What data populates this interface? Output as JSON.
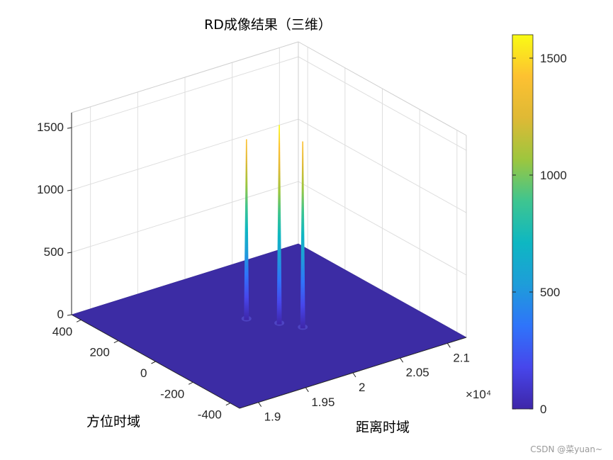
{
  "chart_data": {
    "type": "surface",
    "title": "RD成像结果（三维）",
    "xlabel": "距离时域",
    "ylabel": "方位时域",
    "zlabel": "",
    "x_ticks": [
      "1.9",
      "1.95",
      "2",
      "2.05",
      "2.1"
    ],
    "x_exponent": "×10⁴",
    "y_ticks": [
      "400",
      "200",
      "0",
      "-200",
      "-400"
    ],
    "z_ticks": [
      "0",
      "500",
      "1000",
      "1500"
    ],
    "xlim": [
      18800,
      21200
    ],
    "ylim": [
      -450,
      450
    ],
    "zlim": [
      0,
      1620
    ],
    "grid": true,
    "base_level": 0,
    "peaks": [
      {
        "x": 19920,
        "y": 80,
        "z": 1450
      },
      {
        "x": 20090,
        "y": -10,
        "z": 1600
      },
      {
        "x": 20200,
        "y": -80,
        "z": 1500
      }
    ],
    "colorbar": {
      "colormap": "parula",
      "ticks": [
        "0",
        "500",
        "1000",
        "1500"
      ],
      "range": [
        0,
        1600
      ],
      "colors": [
        "#3e26a8",
        "#4746eb",
        "#2f74fa",
        "#1e9dd9",
        "#0eb7c2",
        "#3ec590",
        "#9dc63e",
        "#dfb935",
        "#fdc131",
        "#f9fb14"
      ]
    },
    "surface_color": "#3c2ca4"
  },
  "watermark": "CSDN @菜yuan~"
}
